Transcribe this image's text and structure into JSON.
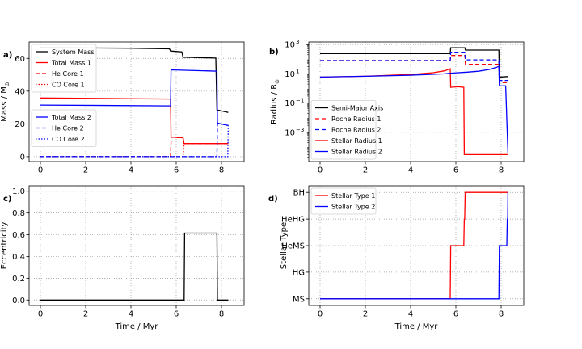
{
  "chart_data": [
    {
      "id": "a",
      "panel_label": "a)",
      "type": "line",
      "ylabel": "Mass / M",
      "ylabel_sub": "⊙",
      "xlabel": "",
      "xlim": [
        -0.5,
        9.0
      ],
      "ylim": [
        -3,
        70
      ],
      "xticks": [
        0,
        2,
        4,
        6,
        8
      ],
      "xtick_labels": [
        "0",
        "2",
        "4",
        "6",
        "8"
      ],
      "yticks": [
        0,
        20,
        40,
        60
      ],
      "ytick_labels": [
        "0",
        "20",
        "40",
        "60"
      ],
      "grid": true,
      "legends": [
        {
          "placement": "upper-left",
          "entries": [
            0,
            1,
            2,
            3
          ]
        },
        {
          "placement": "center-left",
          "entries": [
            4,
            5,
            6
          ]
        }
      ],
      "series": [
        {
          "name": "System Mass",
          "color": "#000000",
          "dash": "solid",
          "x": [
            0,
            4,
            5.7,
            5.75,
            6.25,
            6.3,
            7.75,
            7.8,
            8.3
          ],
          "y": [
            66.5,
            66.2,
            65.8,
            64.5,
            64.0,
            60.7,
            60.2,
            28.5,
            27.0
          ]
        },
        {
          "name": "Total Mass 1",
          "color": "#ff0000",
          "dash": "solid",
          "x": [
            0,
            5.75,
            5.77,
            6.3,
            6.35,
            8.3
          ],
          "y": [
            35.8,
            35.2,
            12.0,
            11.5,
            8.0,
            8.0
          ]
        },
        {
          "name": "He Core 1",
          "color": "#ff0000",
          "dash": "dashed",
          "x": [
            0,
            5.75,
            5.78,
            6.3,
            6.35,
            8.3
          ],
          "y": [
            0,
            0,
            12.0,
            11.5,
            8.0,
            8.0
          ]
        },
        {
          "name": "CO Core 1",
          "color": "#ff0000",
          "dash": "dotted",
          "x": [
            0,
            6.3,
            6.35,
            8.3
          ],
          "y": [
            0,
            0,
            8.0,
            8.0
          ]
        },
        {
          "name": "Total Mass 2",
          "color": "#0000ff",
          "dash": "solid",
          "x": [
            0,
            5.75,
            5.77,
            7.8,
            7.82,
            8.3
          ],
          "y": [
            31.5,
            31.0,
            53.0,
            52.2,
            20.5,
            19.0
          ]
        },
        {
          "name": "He Core 2",
          "color": "#0000ff",
          "dash": "dashed",
          "x": [
            0,
            7.8,
            7.82,
            8.3
          ],
          "y": [
            0,
            0,
            20.5,
            19.0
          ]
        },
        {
          "name": "CO Core 2",
          "color": "#0000ff",
          "dash": "dotted",
          "x": [
            0,
            8.28,
            8.3
          ],
          "y": [
            0,
            0,
            19.0
          ]
        }
      ]
    },
    {
      "id": "b",
      "panel_label": "b)",
      "type": "line",
      "yscale": "log",
      "ylabel": "Radius / R",
      "ylabel_sub": "⊙",
      "xlabel": "",
      "xlim": [
        -0.5,
        9.0
      ],
      "ylim": [
        1e-05,
        1500
      ],
      "xticks": [
        0,
        2,
        4,
        6,
        8
      ],
      "xtick_labels": [
        "0",
        "2",
        "4",
        "6",
        "8"
      ],
      "yticks": [
        0.001,
        0.1,
        10,
        1000
      ],
      "ytick_labels": [
        "10",
        "10",
        "10",
        "10"
      ],
      "ytick_exponents": [
        "−3",
        "−1",
        "1",
        "3"
      ],
      "grid": true,
      "legends": [
        {
          "placement": "lower-left",
          "entries": [
            0,
            1,
            2,
            3,
            4
          ]
        }
      ],
      "series": [
        {
          "name": "Semi-Major Axis",
          "color": "#000000",
          "dash": "solid",
          "x": [
            0,
            5.75,
            5.77,
            6.4,
            6.42,
            7.9,
            7.92,
            8.3
          ],
          "y": [
            240,
            240,
            600,
            600,
            420,
            420,
            6.0,
            6.5
          ]
        },
        {
          "name": "Roche Radius 1",
          "color": "#ff0000",
          "dash": "dashed",
          "x": [
            0,
            5.75,
            5.77,
            6.4,
            6.42,
            7.9,
            7.92,
            8.3
          ],
          "y": [
            80,
            80,
            180,
            180,
            45,
            45,
            2.5,
            2.5
          ]
        },
        {
          "name": "Roche Radius 2",
          "color": "#0000ff",
          "dash": "dashed",
          "x": [
            0,
            5.75,
            5.77,
            6.4,
            6.42,
            7.9,
            7.92,
            8.3
          ],
          "y": [
            80,
            80,
            300,
            300,
            90,
            90,
            3.5,
            3.5
          ]
        },
        {
          "name": "Stellar Radius 1",
          "color": "#ff0000",
          "dash": "solid",
          "x": [
            0,
            2,
            4,
            5,
            5.5,
            5.75,
            5.77,
            6.1,
            6.35,
            6.37,
            8.3
          ],
          "y": [
            6,
            6.8,
            9,
            12,
            16,
            22,
            1.2,
            1.3,
            1.2,
            3e-05,
            3e-05
          ]
        },
        {
          "name": "Stellar Radius 2",
          "color": "#0000ff",
          "dash": "solid",
          "x": [
            0,
            2,
            4,
            5.5,
            5.75,
            6.5,
            7.0,
            7.5,
            7.8,
            7.9,
            7.92,
            8.2,
            8.3
          ],
          "y": [
            6,
            6.8,
            8,
            10,
            11,
            13,
            15,
            20,
            28,
            32,
            1.5,
            1.5,
            4e-05
          ]
        }
      ]
    },
    {
      "id": "c",
      "panel_label": "c)",
      "type": "line",
      "ylabel": "Eccentricity",
      "xlabel": "Time / Myr",
      "xlim": [
        -0.5,
        9.0
      ],
      "ylim": [
        -0.05,
        1.05
      ],
      "xticks": [
        0,
        2,
        4,
        6,
        8
      ],
      "xtick_labels": [
        "0",
        "2",
        "4",
        "6",
        "8"
      ],
      "yticks": [
        0.0,
        0.2,
        0.4,
        0.6,
        0.8,
        1.0
      ],
      "ytick_labels": [
        "0.0",
        "0.2",
        "0.4",
        "0.6",
        "0.8",
        "1.0"
      ],
      "grid": true,
      "legends": [],
      "series": [
        {
          "name": "",
          "color": "#000000",
          "dash": "solid",
          "x": [
            0,
            6.35,
            6.37,
            7.8,
            7.82,
            8.3
          ],
          "y": [
            0,
            0,
            0.615,
            0.615,
            0,
            0
          ]
        }
      ]
    },
    {
      "id": "d",
      "panel_label": "d)",
      "type": "line",
      "ylabel": "Stellar Type",
      "xlabel": "Time / Myr",
      "xlim": [
        -0.5,
        9.0
      ],
      "ylim": [
        -0.25,
        4.25
      ],
      "xticks": [
        0,
        2,
        4,
        6,
        8
      ],
      "xtick_labels": [
        "0",
        "2",
        "4",
        "6",
        "8"
      ],
      "yticks": [
        0,
        1,
        2,
        3,
        4
      ],
      "ytick_labels": [
        "MS",
        "HG",
        "HeMS",
        "HeHG",
        "BH"
      ],
      "grid": true,
      "legends": [
        {
          "placement": "upper-left",
          "entries": [
            0,
            1
          ]
        }
      ],
      "series": [
        {
          "name": "Stellar Type 1",
          "color": "#ff0000",
          "dash": "solid",
          "x": [
            0,
            5.75,
            5.77,
            6.35,
            6.37,
            6.39,
            6.41,
            8.3
          ],
          "y": [
            0,
            0,
            2,
            2,
            3,
            3,
            4,
            4
          ]
        },
        {
          "name": "Stellar Type 2",
          "color": "#0000ff",
          "dash": "solid",
          "x": [
            0,
            7.9,
            7.92,
            8.25,
            8.27,
            8.29,
            8.3
          ],
          "y": [
            0,
            0,
            2,
            2,
            3,
            3,
            4
          ]
        }
      ]
    }
  ]
}
